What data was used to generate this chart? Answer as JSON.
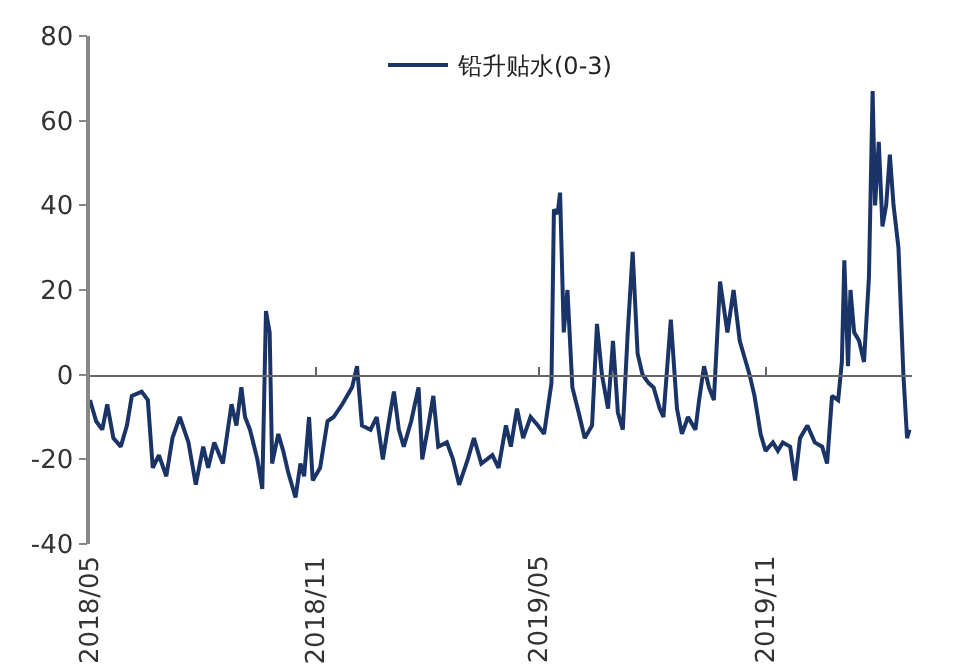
{
  "chart_data": {
    "type": "line",
    "x": [
      "2018-05-01",
      "2018-05-06",
      "2018-05-11",
      "2018-05-15",
      "2018-05-20",
      "2018-05-26",
      "2018-05-31",
      "2018-06-04",
      "2018-06-12",
      "2018-06-17",
      "2018-06-21",
      "2018-06-26",
      "2018-07-02",
      "2018-07-07",
      "2018-07-13",
      "2018-07-20",
      "2018-07-26",
      "2018-08-01",
      "2018-08-05",
      "2018-08-10",
      "2018-08-17",
      "2018-08-24",
      "2018-08-28",
      "2018-09-01",
      "2018-09-04",
      "2018-09-08",
      "2018-09-14",
      "2018-09-18",
      "2018-09-21",
      "2018-09-24",
      "2018-09-26",
      "2018-10-01",
      "2018-10-05",
      "2018-10-09",
      "2018-10-15",
      "2018-10-19",
      "2018-10-22",
      "2018-10-26",
      "2018-10-29",
      "2018-11-04",
      "2018-11-10",
      "2018-11-15",
      "2018-11-22",
      "2018-11-30",
      "2018-12-04",
      "2018-12-08",
      "2018-12-15",
      "2018-12-20",
      "2018-12-25",
      "2018-12-31",
      "2019-01-03",
      "2019-01-07",
      "2019-01-11",
      "2019-01-17",
      "2019-01-23",
      "2019-01-26",
      "2019-01-31",
      "2019-02-04",
      "2019-02-08",
      "2019-02-15",
      "2019-02-20",
      "2019-02-25",
      "2019-03-04",
      "2019-03-09",
      "2019-03-15",
      "2019-03-24",
      "2019-03-29",
      "2019-04-04",
      "2019-04-08",
      "2019-04-13",
      "2019-04-18",
      "2019-04-24",
      "2019-04-30",
      "2019-05-05",
      "2019-05-11",
      "2019-05-13",
      "2019-05-16",
      "2019-05-18",
      "2019-05-21",
      "2019-05-24",
      "2019-05-28",
      "2019-06-03",
      "2019-06-07",
      "2019-06-13",
      "2019-06-17",
      "2019-06-21",
      "2019-06-26",
      "2019-06-30",
      "2019-07-04",
      "2019-07-08",
      "2019-07-12",
      "2019-07-16",
      "2019-07-20",
      "2019-07-24",
      "2019-07-29",
      "2019-08-02",
      "2019-08-07",
      "2019-08-10",
      "2019-08-16",
      "2019-08-21",
      "2019-08-25",
      "2019-08-30",
      "2019-09-05",
      "2019-09-08",
      "2019-09-12",
      "2019-09-16",
      "2019-09-20",
      "2019-09-25",
      "2019-10-01",
      "2019-10-06",
      "2019-10-11",
      "2019-10-15",
      "2019-10-19",
      "2019-10-23",
      "2019-10-28",
      "2019-11-01",
      "2019-11-07",
      "2019-11-11",
      "2019-11-15",
      "2019-11-21",
      "2019-11-25",
      "2019-11-29",
      "2019-12-05",
      "2019-12-11",
      "2019-12-17",
      "2019-12-21",
      "2019-12-25",
      "2019-12-30",
      "2020-01-02",
      "2020-01-04",
      "2020-01-07",
      "2020-01-09",
      "2020-01-12",
      "2020-01-16",
      "2020-01-20",
      "2020-01-24",
      "2020-01-27",
      "2020-01-29",
      "2020-02-01",
      "2020-02-04",
      "2020-02-07",
      "2020-02-10",
      "2020-02-13",
      "2020-02-17",
      "2020-02-21",
      "2020-02-24",
      "2020-02-26"
    ],
    "series": [
      {
        "name": "铅升贴水(0-3)",
        "color": "#1b3468",
        "values": [
          -6,
          -11,
          -13,
          -7,
          -15,
          -17,
          -12,
          -5,
          -4,
          -6,
          -22,
          -19,
          -24,
          -15,
          -10,
          -16,
          -26,
          -17,
          -22,
          -16,
          -21,
          -7,
          -12,
          -3,
          -10,
          -13,
          -20,
          -27,
          15,
          10,
          -21,
          -14,
          -18,
          -23,
          -29,
          -21,
          -24,
          -10,
          -25,
          -22,
          -11,
          -10,
          -7,
          -3,
          2,
          -12,
          -13,
          -10,
          -20,
          -9,
          -4,
          -13,
          -17,
          -11,
          -3,
          -20,
          -12,
          -5,
          -17,
          -16,
          -20,
          -26,
          -20,
          -15,
          -21,
          -19,
          -22,
          -12,
          -17,
          -8,
          -15,
          -10,
          -12,
          -14,
          -2,
          39,
          38,
          43,
          10,
          20,
          -3,
          -10,
          -15,
          -12,
          12,
          0,
          -8,
          8,
          -9,
          -13,
          10,
          29,
          5,
          0,
          -2,
          -3,
          -8,
          -10,
          13,
          -8,
          -14,
          -10,
          -13,
          -6,
          2,
          -3,
          -6,
          22,
          10,
          20,
          8,
          4,
          0,
          -5,
          -14,
          -18,
          -16,
          -18,
          -16,
          -17,
          -25,
          -15,
          -12,
          -16,
          -17,
          -21,
          -5,
          -6,
          3,
          27,
          2,
          20,
          10,
          8,
          3,
          23,
          67,
          40,
          55,
          35,
          40,
          52,
          40,
          30,
          0,
          -15,
          -13
        ]
      }
    ],
    "xlim": [
      "2018-05-01",
      "2020-02-28"
    ],
    "xticks": [
      {
        "value": "2018-05-01",
        "label": "2018/05"
      },
      {
        "value": "2018-11-01",
        "label": "2018/11"
      },
      {
        "value": "2019-05-01",
        "label": "2019/05"
      },
      {
        "value": "2019-11-01",
        "label": "2019/11"
      }
    ],
    "ylim": [
      -40,
      80
    ],
    "yticks": [
      -40,
      -20,
      0,
      20,
      40,
      60,
      80
    ],
    "legend": "top",
    "marker": "none",
    "line_style": "solid"
  }
}
